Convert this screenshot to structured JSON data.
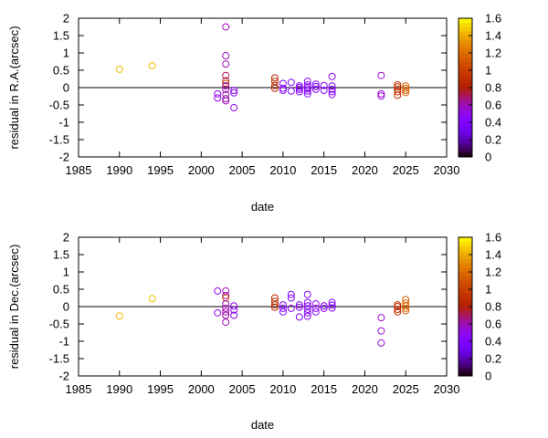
{
  "chart_data": [
    {
      "type": "scatter",
      "xlabel": "date",
      "ylabel": "residual in R.A.(arcsec)",
      "xlim": [
        1985,
        2030
      ],
      "ylim": [
        -2,
        2
      ],
      "xticks": [
        "1985",
        "1990",
        "1995",
        "2000",
        "2005",
        "2010",
        "2015",
        "2020",
        "2025",
        "2030"
      ],
      "yticks": [
        "2",
        "1.5",
        "1",
        "0.5",
        "0",
        "-0.5",
        "-1",
        "-1.5",
        "-2"
      ],
      "zero_line": true,
      "colorbar": {
        "min": 0,
        "max": 1.6,
        "ticks": [
          "0",
          "0.2",
          "0.4",
          "0.6",
          "0.8",
          "1",
          "1.2",
          "1.4",
          "1.6"
        ]
      },
      "points": [
        {
          "x": 1990,
          "y": 0.53,
          "c": 1.45
        },
        {
          "x": 1994,
          "y": 0.63,
          "c": 1.45
        },
        {
          "x": 2002,
          "y": -0.18,
          "c": 0.5
        },
        {
          "x": 2002,
          "y": -0.3,
          "c": 0.5
        },
        {
          "x": 2003,
          "y": 1.75,
          "c": 0.6
        },
        {
          "x": 2003,
          "y": 0.92,
          "c": 0.6
        },
        {
          "x": 2003,
          "y": 0.68,
          "c": 0.6
        },
        {
          "x": 2003,
          "y": 0.35,
          "c": 0.7
        },
        {
          "x": 2003,
          "y": 0.2,
          "c": 0.75
        },
        {
          "x": 2003,
          "y": 0.12,
          "c": 1.1
        },
        {
          "x": 2003,
          "y": 0.05,
          "c": 0.6
        },
        {
          "x": 2003,
          "y": -0.05,
          "c": 0.6
        },
        {
          "x": 2003,
          "y": -0.2,
          "c": 0.6
        },
        {
          "x": 2003,
          "y": -0.32,
          "c": 0.6
        },
        {
          "x": 2003,
          "y": -0.38,
          "c": 0.6
        },
        {
          "x": 2004,
          "y": -0.08,
          "c": 0.5
        },
        {
          "x": 2004,
          "y": -0.15,
          "c": 0.5
        },
        {
          "x": 2004,
          "y": -0.58,
          "c": 0.5
        },
        {
          "x": 2009,
          "y": 0.28,
          "c": 0.85
        },
        {
          "x": 2009,
          "y": 0.18,
          "c": 0.85
        },
        {
          "x": 2009,
          "y": 0.06,
          "c": 0.85
        },
        {
          "x": 2009,
          "y": -0.02,
          "c": 0.85
        },
        {
          "x": 2010,
          "y": 0.12,
          "c": 0.45
        },
        {
          "x": 2010,
          "y": -0.02,
          "c": 0.45
        },
        {
          "x": 2010,
          "y": -0.08,
          "c": 0.45
        },
        {
          "x": 2011,
          "y": 0.15,
          "c": 0.45
        },
        {
          "x": 2011,
          "y": -0.1,
          "c": 0.45
        },
        {
          "x": 2012,
          "y": 0.05,
          "c": 0.45
        },
        {
          "x": 2012,
          "y": 0.0,
          "c": 0.45
        },
        {
          "x": 2012,
          "y": -0.05,
          "c": 0.45
        },
        {
          "x": 2012,
          "y": -0.12,
          "c": 0.45
        },
        {
          "x": 2013,
          "y": 0.18,
          "c": 0.45
        },
        {
          "x": 2013,
          "y": 0.08,
          "c": 0.45
        },
        {
          "x": 2013,
          "y": 0.02,
          "c": 0.45
        },
        {
          "x": 2013,
          "y": -0.04,
          "c": 0.45
        },
        {
          "x": 2013,
          "y": -0.1,
          "c": 0.45
        },
        {
          "x": 2013,
          "y": -0.18,
          "c": 0.45
        },
        {
          "x": 2014,
          "y": 0.1,
          "c": 0.45
        },
        {
          "x": 2014,
          "y": 0.03,
          "c": 0.45
        },
        {
          "x": 2014,
          "y": -0.05,
          "c": 0.45
        },
        {
          "x": 2015,
          "y": 0.06,
          "c": 0.45
        },
        {
          "x": 2015,
          "y": -0.08,
          "c": 0.45
        },
        {
          "x": 2016,
          "y": 0.32,
          "c": 0.45
        },
        {
          "x": 2016,
          "y": 0.05,
          "c": 0.45
        },
        {
          "x": 2016,
          "y": -0.05,
          "c": 0.45
        },
        {
          "x": 2016,
          "y": -0.12,
          "c": 0.45
        },
        {
          "x": 2016,
          "y": -0.2,
          "c": 0.45
        },
        {
          "x": 2022,
          "y": 0.35,
          "c": 0.55
        },
        {
          "x": 2022,
          "y": -0.18,
          "c": 0.55
        },
        {
          "x": 2022,
          "y": -0.24,
          "c": 0.55
        },
        {
          "x": 2024,
          "y": 0.08,
          "c": 0.9
        },
        {
          "x": 2024,
          "y": 0.02,
          "c": 0.9
        },
        {
          "x": 2024,
          "y": -0.05,
          "c": 0.9
        },
        {
          "x": 2024,
          "y": -0.12,
          "c": 0.9
        },
        {
          "x": 2024,
          "y": -0.22,
          "c": 0.9
        },
        {
          "x": 2025,
          "y": 0.05,
          "c": 1.15
        },
        {
          "x": 2025,
          "y": -0.02,
          "c": 1.15
        },
        {
          "x": 2025,
          "y": -0.08,
          "c": 1.15
        },
        {
          "x": 2025,
          "y": -0.14,
          "c": 1.15
        }
      ]
    },
    {
      "type": "scatter",
      "xlabel": "date",
      "ylabel": "residual in Dec.(arcsec)",
      "xlim": [
        1985,
        2030
      ],
      "ylim": [
        -2,
        2
      ],
      "xticks": [
        "1985",
        "1990",
        "1995",
        "2000",
        "2005",
        "2010",
        "2015",
        "2020",
        "2025",
        "2030"
      ],
      "yticks": [
        "2",
        "1.5",
        "1",
        "0.5",
        "0",
        "-0.5",
        "-1",
        "-1.5",
        "-2"
      ],
      "zero_line": true,
      "colorbar": {
        "min": 0,
        "max": 1.6,
        "ticks": [
          "0",
          "0.2",
          "0.4",
          "0.6",
          "0.8",
          "1",
          "1.2",
          "1.4",
          "1.6"
        ]
      },
      "points": [
        {
          "x": 1990,
          "y": -0.27,
          "c": 1.45
        },
        {
          "x": 1994,
          "y": 0.23,
          "c": 1.45
        },
        {
          "x": 2002,
          "y": 0.45,
          "c": 0.5
        },
        {
          "x": 2002,
          "y": -0.18,
          "c": 0.5
        },
        {
          "x": 2003,
          "y": 0.45,
          "c": 0.6
        },
        {
          "x": 2003,
          "y": 0.32,
          "c": 0.6
        },
        {
          "x": 2003,
          "y": 0.25,
          "c": 1.1
        },
        {
          "x": 2003,
          "y": 0.08,
          "c": 0.6
        },
        {
          "x": 2003,
          "y": -0.05,
          "c": 0.6
        },
        {
          "x": 2003,
          "y": -0.15,
          "c": 0.6
        },
        {
          "x": 2003,
          "y": -0.25,
          "c": 0.6
        },
        {
          "x": 2003,
          "y": -0.45,
          "c": 0.6
        },
        {
          "x": 2004,
          "y": 0.02,
          "c": 0.5
        },
        {
          "x": 2004,
          "y": -0.1,
          "c": 0.5
        },
        {
          "x": 2004,
          "y": -0.25,
          "c": 0.5
        },
        {
          "x": 2009,
          "y": 0.25,
          "c": 0.85
        },
        {
          "x": 2009,
          "y": 0.15,
          "c": 0.85
        },
        {
          "x": 2009,
          "y": 0.05,
          "c": 0.85
        },
        {
          "x": 2009,
          "y": -0.02,
          "c": 0.85
        },
        {
          "x": 2010,
          "y": 0.05,
          "c": 0.45
        },
        {
          "x": 2010,
          "y": -0.05,
          "c": 0.45
        },
        {
          "x": 2010,
          "y": -0.15,
          "c": 0.45
        },
        {
          "x": 2011,
          "y": 0.35,
          "c": 0.45
        },
        {
          "x": 2011,
          "y": 0.25,
          "c": 0.45
        },
        {
          "x": 2011,
          "y": -0.05,
          "c": 0.45
        },
        {
          "x": 2012,
          "y": 0.05,
          "c": 0.45
        },
        {
          "x": 2012,
          "y": -0.02,
          "c": 0.45
        },
        {
          "x": 2012,
          "y": -0.3,
          "c": 0.45
        },
        {
          "x": 2013,
          "y": 0.35,
          "c": 0.45
        },
        {
          "x": 2013,
          "y": 0.12,
          "c": 0.45
        },
        {
          "x": 2013,
          "y": 0.02,
          "c": 0.45
        },
        {
          "x": 2013,
          "y": -0.08,
          "c": 0.45
        },
        {
          "x": 2013,
          "y": -0.18,
          "c": 0.45
        },
        {
          "x": 2013,
          "y": -0.28,
          "c": 0.45
        },
        {
          "x": 2014,
          "y": 0.08,
          "c": 0.45
        },
        {
          "x": 2014,
          "y": -0.05,
          "c": 0.45
        },
        {
          "x": 2014,
          "y": -0.15,
          "c": 0.45
        },
        {
          "x": 2015,
          "y": 0.02,
          "c": 0.45
        },
        {
          "x": 2015,
          "y": -0.05,
          "c": 0.45
        },
        {
          "x": 2016,
          "y": 0.12,
          "c": 0.45
        },
        {
          "x": 2016,
          "y": 0.04,
          "c": 0.45
        },
        {
          "x": 2016,
          "y": -0.04,
          "c": 0.45
        },
        {
          "x": 2022,
          "y": -0.32,
          "c": 0.55
        },
        {
          "x": 2022,
          "y": -0.7,
          "c": 0.55
        },
        {
          "x": 2022,
          "y": -1.05,
          "c": 0.55
        },
        {
          "x": 2024,
          "y": 0.05,
          "c": 0.9
        },
        {
          "x": 2024,
          "y": 0.0,
          "c": 0.9
        },
        {
          "x": 2024,
          "y": -0.08,
          "c": 0.9
        },
        {
          "x": 2024,
          "y": -0.15,
          "c": 0.9
        },
        {
          "x": 2025,
          "y": 0.2,
          "c": 1.15
        },
        {
          "x": 2025,
          "y": 0.1,
          "c": 1.15
        },
        {
          "x": 2025,
          "y": 0.02,
          "c": 1.15
        },
        {
          "x": 2025,
          "y": -0.05,
          "c": 1.15
        },
        {
          "x": 2025,
          "y": -0.12,
          "c": 1.15
        }
      ]
    }
  ]
}
